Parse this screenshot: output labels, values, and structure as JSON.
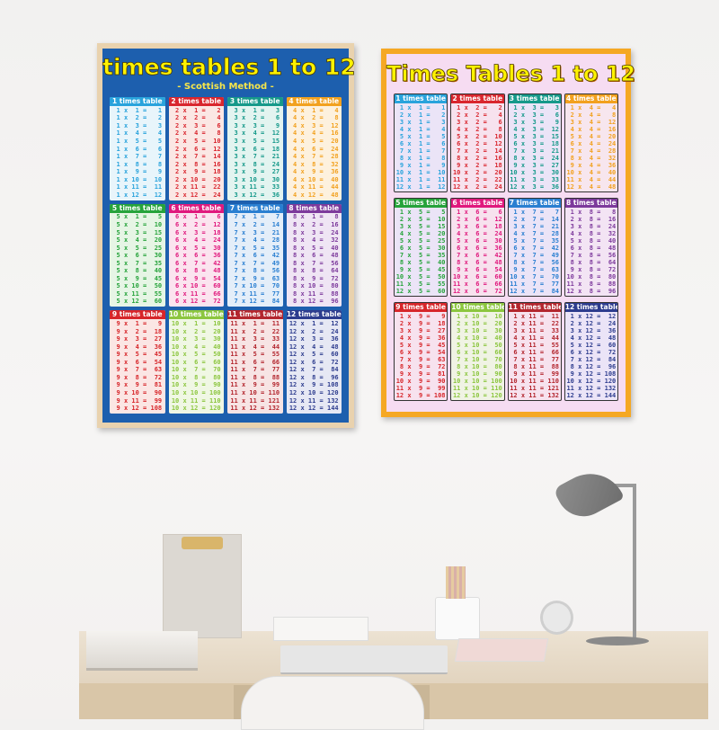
{
  "poster_left": {
    "title": "times tables 1 to 12",
    "subtitle": "- Scottish Method -",
    "equation_order": "table-first",
    "background": "#1d5fae",
    "frame": "#e9d2ae",
    "tables": [
      {
        "n": 1,
        "label": "1 times table",
        "color": "#29a3dc",
        "body": "#e8f5fb"
      },
      {
        "n": 2,
        "label": "2 times table",
        "color": "#d9262e",
        "body": "#fbe7e4"
      },
      {
        "n": 3,
        "label": "3 times table",
        "color": "#16998a",
        "body": "#e3f4f0"
      },
      {
        "n": 4,
        "label": "4 times table",
        "color": "#f2a11f",
        "body": "#fdf1de"
      },
      {
        "n": 5,
        "label": "5 times table",
        "color": "#26a33b",
        "body": "#e6f5e5"
      },
      {
        "n": 6,
        "label": "6 times table",
        "color": "#e0197d",
        "body": "#fbe4ef"
      },
      {
        "n": 7,
        "label": "7 times table",
        "color": "#2a7fd1",
        "body": "#e4eef9"
      },
      {
        "n": 8,
        "label": "8 times table",
        "color": "#7d3a9c",
        "body": "#efe5f4"
      },
      {
        "n": 9,
        "label": "9 times table",
        "color": "#d7262a",
        "body": "#fbe6e4"
      },
      {
        "n": 10,
        "label": "10 times table",
        "color": "#8cc63f",
        "body": "#f0f7e4"
      },
      {
        "n": 11,
        "label": "11 times table",
        "color": "#b3262e",
        "body": "#f7e4e4"
      },
      {
        "n": 12,
        "label": "12 times table",
        "color": "#2d3c8e",
        "body": "#e6e8f4"
      }
    ]
  },
  "poster_right": {
    "title": "Times Tables 1 to 12",
    "equation_order": "multiplier-first",
    "background": "#f6dcf2",
    "frame": "#f5a824",
    "tables": [
      {
        "n": 1,
        "label": "1 times table",
        "color": "#29a3dc",
        "body": "#ebe4f7"
      },
      {
        "n": 2,
        "label": "2 times table",
        "color": "#d9262e",
        "body": "#f7e2ee"
      },
      {
        "n": 3,
        "label": "3 times table",
        "color": "#16998a",
        "body": "#ebe4f7"
      },
      {
        "n": 4,
        "label": "4 times table",
        "color": "#f2a11f",
        "body": "#f7e6ee"
      },
      {
        "n": 5,
        "label": "5 times table",
        "color": "#26a33b",
        "body": "#ebe4f7"
      },
      {
        "n": 6,
        "label": "6 times table",
        "color": "#e0197d",
        "body": "#f7e2ee"
      },
      {
        "n": 7,
        "label": "7 times table",
        "color": "#2a7fd1",
        "body": "#ebe4f7"
      },
      {
        "n": 8,
        "label": "8 times table",
        "color": "#7d3a9c",
        "body": "#f3e4f4"
      },
      {
        "n": 9,
        "label": "9 times table",
        "color": "#d7262a",
        "body": "#f7e2ee"
      },
      {
        "n": 10,
        "label": "10 times table",
        "color": "#8cc63f",
        "body": "#f0f3e4"
      },
      {
        "n": 11,
        "label": "11 times table",
        "color": "#b3262e",
        "body": "#f7e2ee"
      },
      {
        "n": 12,
        "label": "12 times table",
        "color": "#2d3c8e",
        "body": "#ebe4f7"
      }
    ]
  }
}
